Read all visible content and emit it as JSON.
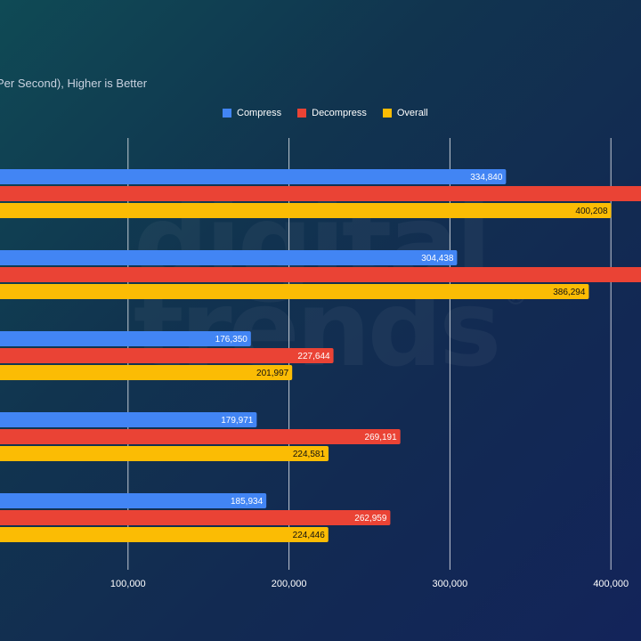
{
  "subtitle": "Per Second), Higher is Better",
  "watermark": {
    "line1": "digital",
    "line2": "trends",
    "mark": "®"
  },
  "chart_data": {
    "type": "bar",
    "orientation": "horizontal",
    "title": "",
    "subtitle": "Per Second), Higher is Better",
    "xlabel": "",
    "ylabel": "",
    "xlim": [
      0,
      420000
    ],
    "x_ticks": [
      100000,
      200000,
      300000,
      400000
    ],
    "x_tick_labels": [
      "100,000",
      "200,000",
      "300,000",
      "400,000"
    ],
    "grid": "vertical",
    "legend_position": "top",
    "categories": [
      "",
      "",
      "",
      "",
      ""
    ],
    "series": [
      {
        "name": "Compress",
        "color": "#4285f4",
        "values": [
          334840,
          304438,
          176350,
          179971,
          185934
        ],
        "labels": [
          "334,840",
          "304,438",
          "176,350",
          "179,971",
          "185,934"
        ],
        "label_color": "#ffffff"
      },
      {
        "name": "Decompress",
        "color": "#ea4335",
        "values": [
          430000,
          430000,
          227644,
          269191,
          262959
        ],
        "labels": [
          "",
          "",
          "227,644",
          "269,191",
          "262,959"
        ],
        "label_color": "#ffffff"
      },
      {
        "name": "Overall",
        "color": "#fbbc04",
        "values": [
          400208,
          386294,
          201997,
          224581,
          224446
        ],
        "labels": [
          "400,208",
          "386,294",
          "201,997",
          "224,581",
          "224,446"
        ],
        "label_color": "#111111"
      }
    ]
  }
}
